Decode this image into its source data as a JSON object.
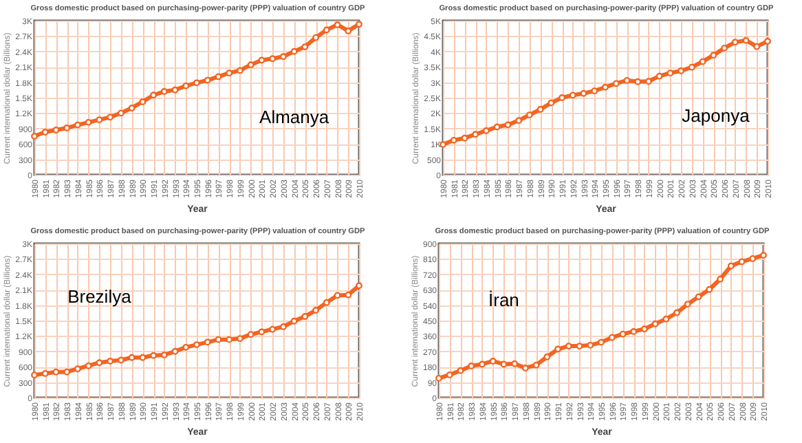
{
  "chart_data": [
    {
      "type": "line",
      "title": "Gross domestic product based on purchasing-power-parity (PPP) valuation of country GDP",
      "xlabel": "Year",
      "ylabel": "Current international dollar (Billions)",
      "annotations": [
        "Almanya"
      ],
      "categories": [
        "1980",
        "1981",
        "1982",
        "1983",
        "1984",
        "1985",
        "1986",
        "1987",
        "1988",
        "1989",
        "1990",
        "1991",
        "1992",
        "1993",
        "1994",
        "1995",
        "1996",
        "1997",
        "1998",
        "1999",
        "2000",
        "2001",
        "2002",
        "2003",
        "2004",
        "2005",
        "2006",
        "2007",
        "2008",
        "2009",
        "2010"
      ],
      "series": [
        {
          "color": "#f26522",
          "values": [
            750,
            830,
            870,
            910,
            970,
            1020,
            1070,
            1120,
            1200,
            1300,
            1420,
            1550,
            1620,
            1650,
            1730,
            1790,
            1840,
            1910,
            1980,
            2030,
            2140,
            2230,
            2260,
            2300,
            2400,
            2490,
            2670,
            2820,
            2920,
            2800,
            2930
          ]
        }
      ],
      "ylim": [
        0,
        3000
      ],
      "yticks": [
        0,
        300,
        600,
        900,
        {
          "value": 1200,
          "label": "1.2K"
        },
        {
          "value": 1500,
          "label": "1.5K"
        },
        {
          "value": 1800,
          "label": "1.8K"
        },
        {
          "value": 2100,
          "label": "2.1K"
        },
        {
          "value": 2400,
          "label": "2.4K"
        },
        {
          "value": 2700,
          "label": "2.7K"
        },
        {
          "value": 3000,
          "label": "3K"
        }
      ],
      "grid": true,
      "marker": "circle"
    },
    {
      "type": "line",
      "title": "Gross domestic product based on purchasing-power-parity (PPP) valuation of country GDP",
      "xlabel": "Year",
      "ylabel": "Current international dollar (Billions)",
      "annotations": [
        "Japonya"
      ],
      "categories": [
        "1980",
        "1981",
        "1982",
        "1983",
        "1984",
        "1985",
        "1986",
        "1987",
        "1988",
        "1989",
        "1990",
        "1991",
        "1992",
        "1993",
        "1994",
        "1995",
        "1996",
        "1997",
        "1998",
        "1999",
        "2000",
        "2001",
        "2002",
        "2003",
        "2004",
        "2005",
        "2006",
        "2007",
        "2008",
        "2009",
        "2010"
      ],
      "series": [
        {
          "color": "#f26522",
          "values": [
            980,
            1120,
            1190,
            1310,
            1430,
            1550,
            1620,
            1760,
            1940,
            2120,
            2330,
            2500,
            2580,
            2640,
            2720,
            2840,
            2960,
            3060,
            3020,
            3030,
            3200,
            3300,
            3370,
            3490,
            3670,
            3880,
            4110,
            4300,
            4360,
            4160,
            4330
          ]
        }
      ],
      "ylim": [
        0,
        5000
      ],
      "yticks": [
        0,
        500,
        {
          "value": 1000,
          "label": "1K"
        },
        {
          "value": 1500,
          "label": "1.5K"
        },
        {
          "value": 2000,
          "label": "2K"
        },
        {
          "value": 2500,
          "label": "2.5K"
        },
        {
          "value": 3000,
          "label": "3K"
        },
        {
          "value": 3500,
          "label": "3.5K"
        },
        {
          "value": 4000,
          "label": "4K"
        },
        {
          "value": 4500,
          "label": "4.5K"
        },
        {
          "value": 5000,
          "label": "5K"
        }
      ],
      "grid": true,
      "marker": "circle"
    },
    {
      "type": "line",
      "title": "Gross domestic product based on purchasing-power-parity (PPP) valuation of country GDP",
      "xlabel": "Year",
      "ylabel": "Current international dollar (Billions)",
      "annotations": [
        "Brezilya"
      ],
      "categories": [
        "1980",
        "1981",
        "1982",
        "1983",
        "1984",
        "1985",
        "1986",
        "1987",
        "1988",
        "1989",
        "1990",
        "1991",
        "1992",
        "1993",
        "1994",
        "1995",
        "1996",
        "1997",
        "1998",
        "1999",
        "2000",
        "2001",
        "2002",
        "2003",
        "2004",
        "2005",
        "2006",
        "2007",
        "2008",
        "2009",
        "2010"
      ],
      "series": [
        {
          "color": "#f26522",
          "values": [
            440,
            470,
            500,
            500,
            560,
            620,
            680,
            710,
            730,
            780,
            780,
            820,
            830,
            900,
            980,
            1030,
            1080,
            1130,
            1130,
            1150,
            1230,
            1280,
            1330,
            1380,
            1490,
            1580,
            1700,
            1850,
            1990,
            2000,
            2180
          ]
        }
      ],
      "ylim": [
        0,
        3000
      ],
      "yticks": [
        0,
        300,
        600,
        900,
        {
          "value": 1200,
          "label": "1.2K"
        },
        {
          "value": 1500,
          "label": "1.5K"
        },
        {
          "value": 1800,
          "label": "1.8K"
        },
        {
          "value": 2100,
          "label": "2.1K"
        },
        {
          "value": 2400,
          "label": "2.4K"
        },
        {
          "value": 2700,
          "label": "2.7K"
        },
        {
          "value": 3000,
          "label": "3K"
        }
      ],
      "grid": true,
      "marker": "circle"
    },
    {
      "type": "line",
      "title": "Gross domestic product based on purchasing-power-parity (PPP) valuation of country GDP",
      "xlabel": "Year",
      "ylabel": "Current international dollar (Billions)",
      "annotations": [
        "İran"
      ],
      "categories": [
        "1980",
        "1981",
        "1982",
        "1983",
        "1984",
        "1985",
        "1986",
        "1987",
        "1988",
        "1989",
        "1990",
        "1991",
        "1992",
        "1993",
        "1994",
        "1995",
        "1996",
        "1997",
        "1998",
        "1999",
        "2000",
        "2001",
        "2002",
        "2003",
        "2004",
        "2005",
        "2006",
        "2007",
        "2008",
        "2009",
        "2010"
      ],
      "series": [
        {
          "color": "#f26522",
          "values": [
            113,
            133,
            158,
            185,
            195,
            213,
            195,
            198,
            173,
            190,
            238,
            283,
            301,
            301,
            306,
            323,
            351,
            371,
            386,
            401,
            431,
            459,
            496,
            546,
            589,
            632,
            692,
            769,
            794,
            812,
            832
          ]
        }
      ],
      "ylim": [
        0,
        900
      ],
      "yticks": [
        0,
        90,
        180,
        270,
        360,
        450,
        540,
        630,
        720,
        810,
        900
      ],
      "grid": true,
      "marker": "circle"
    }
  ]
}
